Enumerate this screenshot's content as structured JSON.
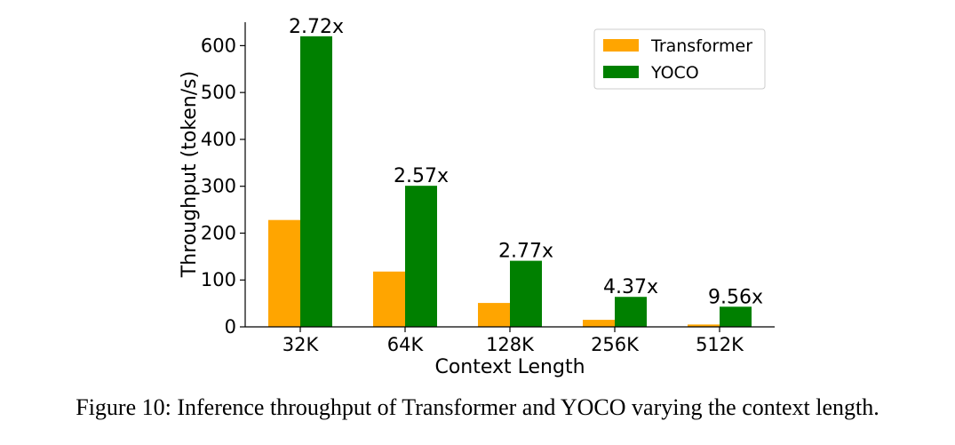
{
  "chart_data": {
    "type": "bar",
    "title": "",
    "xlabel": "Context Length",
    "ylabel": "Throughput (token/s)",
    "categories": [
      "32K",
      "64K",
      "128K",
      "256K",
      "512K"
    ],
    "series": [
      {
        "name": "Transformer",
        "color": "#ffa500",
        "values": [
          228,
          118,
          51,
          15,
          5
        ]
      },
      {
        "name": "YOCO",
        "color": "#008000",
        "values": [
          620,
          301,
          141,
          64,
          43
        ]
      }
    ],
    "annotations": [
      "2.72x",
      "2.57x",
      "2.77x",
      "4.37x",
      "9.56x"
    ],
    "ylim": [
      0,
      650
    ],
    "yticks": [
      0,
      100,
      200,
      300,
      400,
      500,
      600
    ],
    "legend": "top-right",
    "grid": false
  },
  "caption": "Figure 10: Inference throughput of Transformer and YOCO varying the context length."
}
